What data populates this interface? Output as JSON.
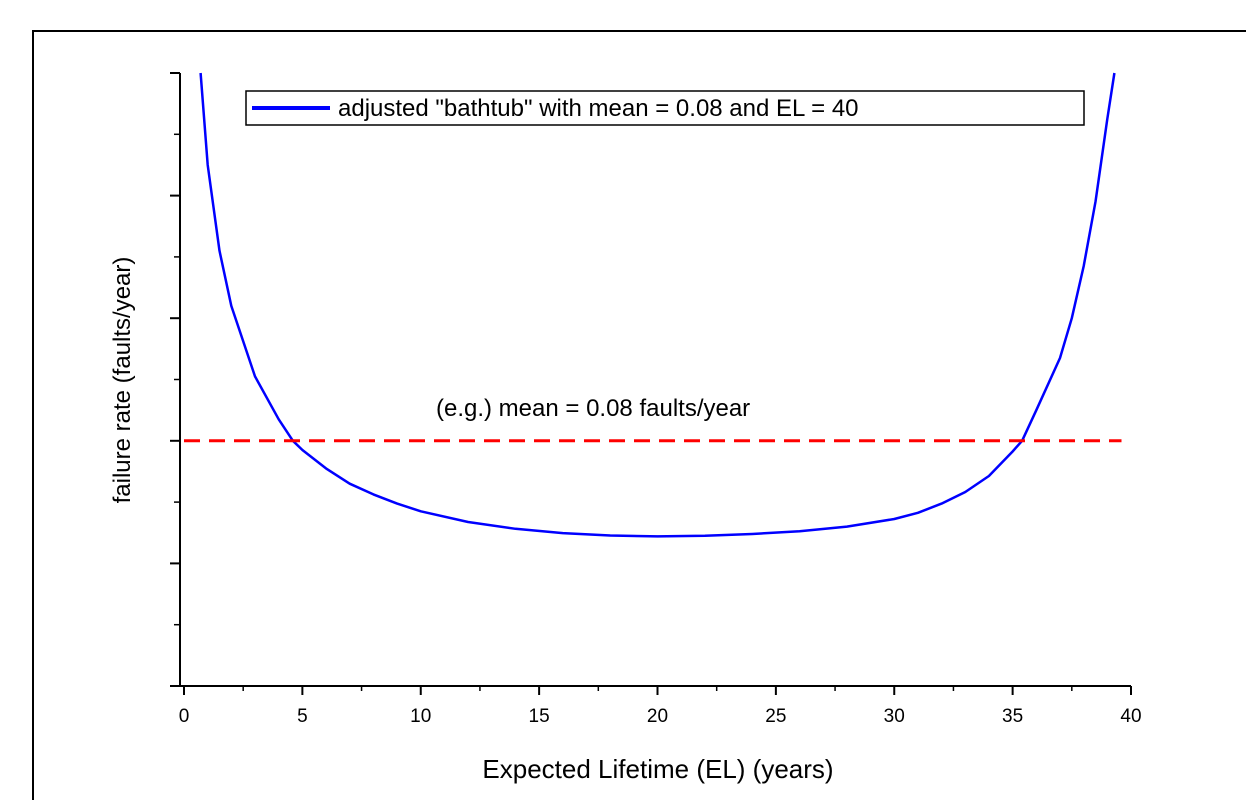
{
  "chart_data": {
    "type": "line",
    "xlabel": "Expected Lifetime (EL) (years)",
    "ylabel": "failure rate (faults/year)",
    "xlim": [
      0,
      40
    ],
    "ylim": [
      0,
      0.2
    ],
    "x_ticks": [
      0,
      5,
      10,
      15,
      20,
      25,
      30,
      35,
      40
    ],
    "x_tick_labels": [
      "0",
      "5",
      "10",
      "15",
      "20",
      "25",
      "30",
      "35",
      "40"
    ],
    "y_tick_labels_shown": false,
    "grid": false,
    "legend_position": "top",
    "annotation": "(e.g.) mean = 0.08 faults/year",
    "series": [
      {
        "name": "adjusted \"bathtub\" with mean = 0.08 and EL = 40",
        "color": "#0000ff",
        "style": "solid",
        "x": [
          0.7,
          1,
          1.5,
          2,
          3,
          4,
          4.6,
          5,
          6,
          7,
          8,
          9,
          10,
          12,
          14,
          16,
          18,
          20,
          22,
          24,
          26,
          28,
          30,
          31,
          32,
          33,
          34,
          35,
          35.4,
          36,
          37,
          37.5,
          38,
          38.5,
          39,
          39.3
        ],
        "y": [
          0.2,
          0.17,
          0.142,
          0.124,
          0.101,
          0.087,
          0.08,
          0.077,
          0.071,
          0.066,
          0.0625,
          0.0595,
          0.057,
          0.0535,
          0.0513,
          0.0499,
          0.0491,
          0.0488,
          0.049,
          0.0496,
          0.0505,
          0.052,
          0.0545,
          0.0565,
          0.0595,
          0.0633,
          0.0685,
          0.0765,
          0.08,
          0.09,
          0.107,
          0.12,
          0.137,
          0.158,
          0.185,
          0.2
        ]
      },
      {
        "name": "mean",
        "color": "#ff0000",
        "style": "dashed",
        "x": [
          0,
          39.6
        ],
        "y": [
          0.08,
          0.08
        ]
      }
    ]
  }
}
